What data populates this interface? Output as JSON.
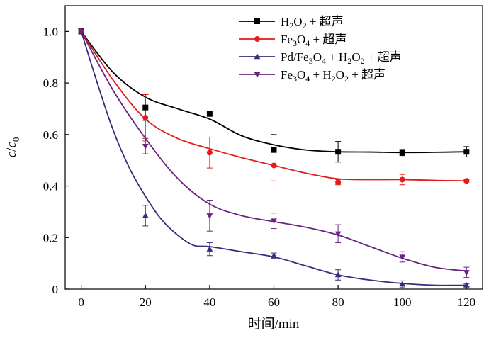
{
  "chart_data": {
    "type": "line",
    "title": "",
    "xlabel": "时间/min",
    "ylabel": "c/c₀",
    "ylabel_parts": {
      "c": "c",
      "slash": "/",
      "c0": "c",
      "sub": "0"
    },
    "xlim": [
      -5,
      125
    ],
    "ylim": [
      0,
      1.1
    ],
    "xticks": [
      0,
      20,
      40,
      60,
      80,
      100,
      120
    ],
    "yticks": [
      0,
      0.2,
      0.4,
      0.6,
      0.8,
      1.0
    ],
    "xtick_labels": [
      "0",
      "20",
      "40",
      "60",
      "80",
      "100",
      "120"
    ],
    "ytick_labels": [
      "0",
      "0.2",
      "0.4",
      "0.6",
      "0.8",
      "1.0"
    ],
    "grid": false,
    "legend_position": "top-right",
    "x": [
      0,
      20,
      40,
      60,
      80,
      100,
      120
    ],
    "series": [
      {
        "name": "H₂O₂ + 超声",
        "legend_parts": [
          [
            "H",
            ""
          ],
          [
            "2",
            "sub"
          ],
          [
            "O",
            ""
          ],
          [
            "2",
            "sub"
          ],
          [
            " + 超声",
            ""
          ]
        ],
        "color": "#000000",
        "marker": "square",
        "values": [
          1.0,
          0.705,
          0.68,
          0.54,
          0.533,
          0.53,
          0.533
        ],
        "errors": [
          0.01,
          0.05,
          0.0,
          0.06,
          0.04,
          0.012,
          0.02
        ],
        "fit": [
          [
            0,
            1.0
          ],
          [
            10,
            0.84
          ],
          [
            20,
            0.745
          ],
          [
            30,
            0.7
          ],
          [
            40,
            0.66
          ],
          [
            50,
            0.595
          ],
          [
            60,
            0.56
          ],
          [
            70,
            0.54
          ],
          [
            80,
            0.533
          ],
          [
            90,
            0.532
          ],
          [
            100,
            0.53
          ],
          [
            110,
            0.531
          ],
          [
            120,
            0.533
          ]
        ]
      },
      {
        "name": "Fe₃O₄ + 超声",
        "legend_parts": [
          [
            "Fe",
            ""
          ],
          [
            "3",
            "sub"
          ],
          [
            "O",
            ""
          ],
          [
            "4",
            "sub"
          ],
          [
            " + 超声",
            ""
          ]
        ],
        "color": "#e41a1c",
        "marker": "circle",
        "values": [
          1.0,
          0.665,
          0.53,
          0.48,
          0.415,
          0.425,
          0.42
        ],
        "errors": [
          0.01,
          0.09,
          0.06,
          0.06,
          0.01,
          0.02,
          0.005
        ],
        "fit": [
          [
            0,
            1.0
          ],
          [
            10,
            0.81
          ],
          [
            20,
            0.66
          ],
          [
            30,
            0.585
          ],
          [
            40,
            0.545
          ],
          [
            50,
            0.51
          ],
          [
            60,
            0.48
          ],
          [
            70,
            0.45
          ],
          [
            80,
            0.428
          ],
          [
            90,
            0.425
          ],
          [
            100,
            0.425
          ],
          [
            110,
            0.422
          ],
          [
            120,
            0.42
          ]
        ]
      },
      {
        "name": "Pd/Fe₃O₄ + H₂O₂ + 超声",
        "legend_parts": [
          [
            "Pd/Fe",
            ""
          ],
          [
            "3",
            "sub"
          ],
          [
            "O",
            ""
          ],
          [
            "4",
            "sub"
          ],
          [
            " + H",
            ""
          ],
          [
            "2",
            "sub"
          ],
          [
            "O",
            ""
          ],
          [
            "2",
            "sub"
          ],
          [
            " + 超声",
            ""
          ]
        ],
        "color": "#3c2a7a",
        "marker": "triangle-up",
        "values": [
          1.0,
          0.285,
          0.155,
          0.13,
          0.055,
          0.02,
          0.015
        ],
        "errors": [
          0.01,
          0.04,
          0.025,
          0.01,
          0.02,
          0.012,
          0.005
        ],
        "fit": [
          [
            0,
            1.0
          ],
          [
            5,
            0.8
          ],
          [
            10,
            0.615
          ],
          [
            15,
            0.47
          ],
          [
            20,
            0.36
          ],
          [
            25,
            0.27
          ],
          [
            30,
            0.21
          ],
          [
            35,
            0.17
          ],
          [
            40,
            0.165
          ],
          [
            50,
            0.145
          ],
          [
            60,
            0.125
          ],
          [
            70,
            0.09
          ],
          [
            80,
            0.055
          ],
          [
            90,
            0.035
          ],
          [
            100,
            0.022
          ],
          [
            110,
            0.015
          ],
          [
            120,
            0.015
          ]
        ]
      },
      {
        "name": "Fe₃O₄ + H₂O₂ + 超声",
        "legend_parts": [
          [
            "Fe",
            ""
          ],
          [
            "3",
            "sub"
          ],
          [
            "O",
            ""
          ],
          [
            "4",
            "sub"
          ],
          [
            " + H",
            ""
          ],
          [
            "2",
            "sub"
          ],
          [
            "O",
            ""
          ],
          [
            "2",
            "sub"
          ],
          [
            " + 超声",
            ""
          ]
        ],
        "color": "#6b2380",
        "marker": "triangle-down",
        "values": [
          1.0,
          0.555,
          0.285,
          0.265,
          0.215,
          0.125,
          0.065
        ],
        "errors": [
          0.01,
          0.03,
          0.06,
          0.03,
          0.035,
          0.02,
          0.02
        ],
        "fit": [
          [
            0,
            1.0
          ],
          [
            10,
            0.77
          ],
          [
            20,
            0.585
          ],
          [
            30,
            0.43
          ],
          [
            40,
            0.33
          ],
          [
            50,
            0.285
          ],
          [
            60,
            0.262
          ],
          [
            70,
            0.24
          ],
          [
            80,
            0.21
          ],
          [
            90,
            0.165
          ],
          [
            100,
            0.12
          ],
          [
            110,
            0.085
          ],
          [
            120,
            0.07
          ]
        ]
      }
    ]
  }
}
